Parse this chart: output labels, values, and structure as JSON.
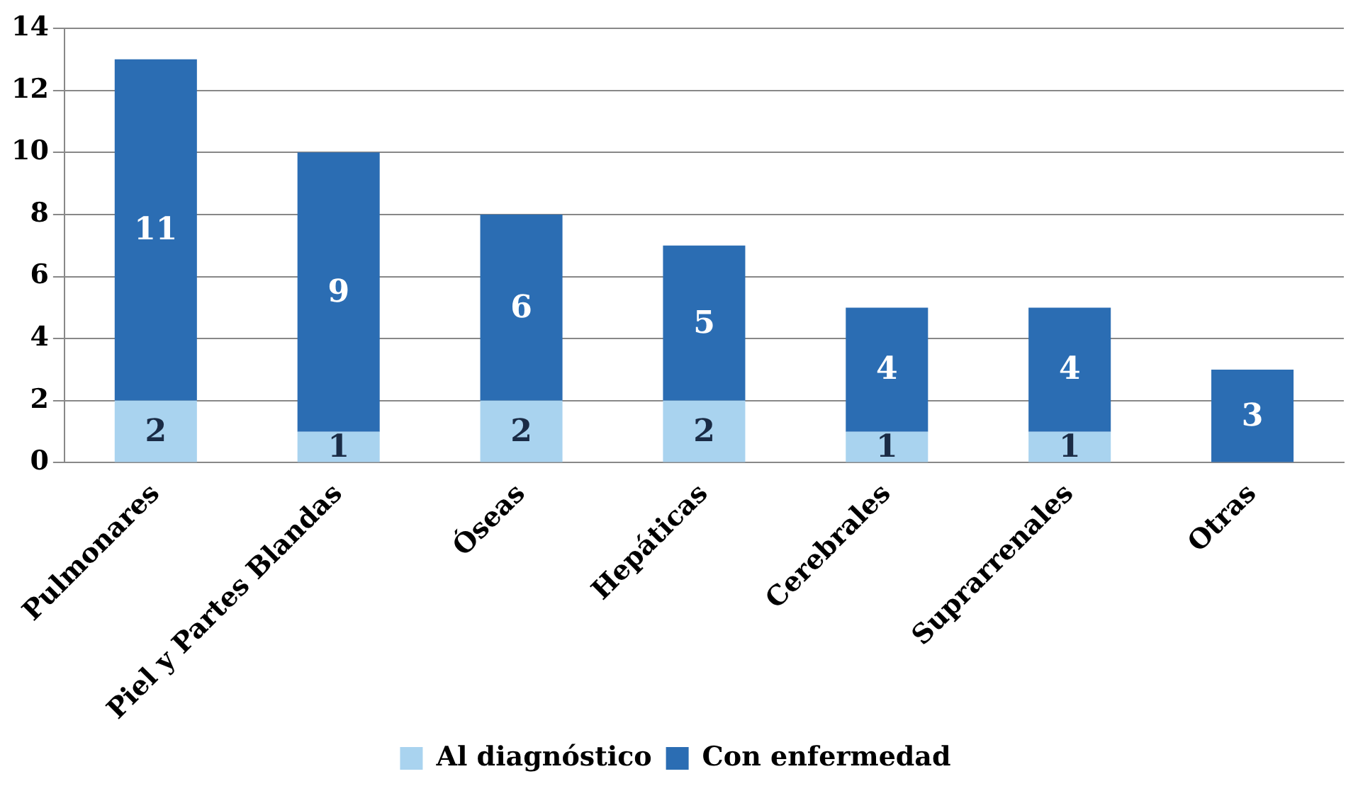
{
  "chart_data": {
    "type": "bar",
    "stacked": true,
    "categories": [
      "Pulmonares",
      "Piel y Partes Blandas",
      "Óseas",
      "Hepáticas",
      "Cerebrales",
      "Suprarrenales",
      "Otras"
    ],
    "series": [
      {
        "name": "Al diagnóstico",
        "color": "#a9d3ef",
        "values": [
          2,
          1,
          2,
          2,
          1,
          1,
          null
        ],
        "value_labels": [
          "2",
          "1",
          "2",
          "2",
          "1",
          "1",
          null
        ]
      },
      {
        "name": "Con enfermedad",
        "color": "#2b6db3",
        "values": [
          11,
          9,
          6,
          5,
          4,
          4,
          3
        ],
        "value_labels": [
          "11",
          "9",
          "6",
          "5",
          "4",
          "4",
          "3"
        ]
      }
    ],
    "ylim": [
      0,
      14
    ],
    "yticks": [
      0,
      2,
      4,
      6,
      8,
      10,
      12,
      14
    ],
    "grid": "y",
    "legend": "bottom"
  }
}
